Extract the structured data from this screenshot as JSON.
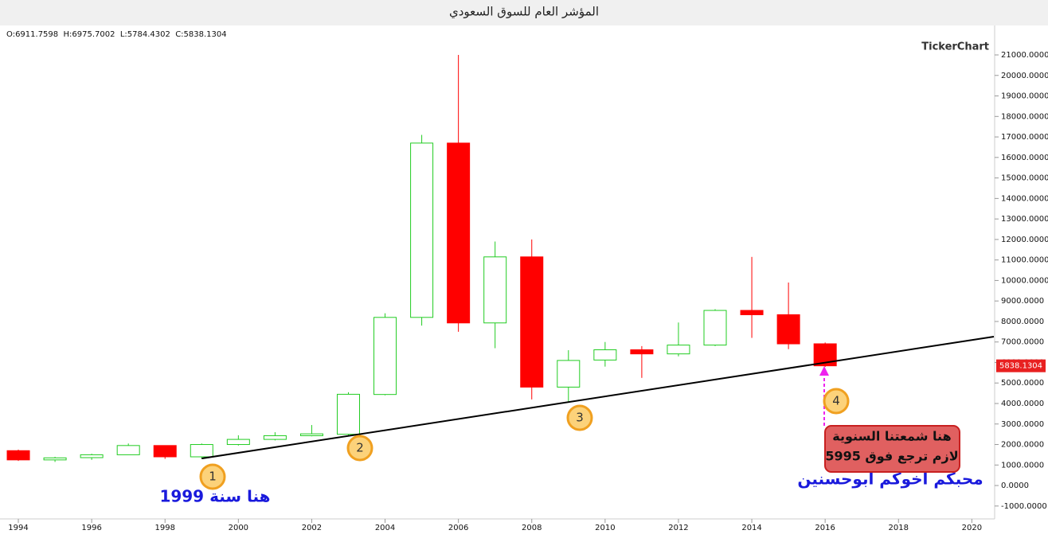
{
  "chart_data": {
    "type": "candlestick",
    "title": "المؤشر العام للسوق السعودي",
    "ohlc_label": "O:6911.7598  H:6975.7002  L:5784.4302  C:5838.1304",
    "watermark": "TickerChart",
    "x": [
      1994,
      1995,
      1996,
      1997,
      1998,
      1999,
      2000,
      2001,
      2002,
      2003,
      2004,
      2005,
      2006,
      2007,
      2008,
      2009,
      2010,
      2011,
      2012,
      2013,
      2014,
      2015,
      2016
    ],
    "series": [
      {
        "open": [
          1700,
          1250,
          1360,
          1500,
          1950,
          1400,
          2000,
          2250,
          2430,
          2500,
          4440,
          8200,
          16700,
          7930,
          11150,
          4800,
          6120,
          6620,
          6420,
          6850,
          8540,
          8330,
          6911.7598
        ],
        "high": [
          1750,
          1400,
          1550,
          2050,
          1950,
          2050,
          2450,
          2600,
          2950,
          4550,
          8400,
          17100,
          21000,
          11900,
          12000,
          6600,
          7000,
          6800,
          7950,
          8600,
          11150,
          9900,
          6975.7002
        ],
        "low": [
          1200,
          1150,
          1250,
          1500,
          1300,
          1300,
          1950,
          2200,
          2400,
          2400,
          4400,
          7800,
          7500,
          6700,
          4200,
          4100,
          5800,
          5250,
          6300,
          6800,
          7200,
          6650,
          5784.4302
        ],
        "close": [
          1250,
          1350,
          1500,
          1950,
          1400,
          2000,
          2250,
          2430,
          2520,
          4450,
          8200,
          16700,
          7930,
          11150,
          4800,
          6100,
          6620,
          6420,
          6850,
          8540,
          8330,
          6910,
          5838.1304
        ]
      }
    ],
    "up_color": "#22cc22",
    "down_color": "#ff0000",
    "xlim": [
      1993.5,
      2020.6
    ],
    "xticks": [
      1994,
      1996,
      1998,
      2000,
      2002,
      2004,
      2006,
      2008,
      2010,
      2012,
      2014,
      2016,
      2018,
      2020
    ],
    "ylim": [
      -1550,
      22320
    ],
    "yticks": [
      {
        "value": -1000,
        "label": "-1000.0000"
      },
      {
        "value": 0,
        "label": "0.0000"
      },
      {
        "value": 1000,
        "label": "1000.0000"
      },
      {
        "value": 2000,
        "label": "2000.0000"
      },
      {
        "value": 3000,
        "label": "3000.0000"
      },
      {
        "value": 4000,
        "label": "4000.0000"
      },
      {
        "value": 5000,
        "label": "5000.0000"
      },
      {
        "value": 6000,
        "label": "6000.0000"
      },
      {
        "value": 7000,
        "label": "7000.0000"
      },
      {
        "value": 8000,
        "label": "8000.0000"
      },
      {
        "value": 9000,
        "label": "9000.0000"
      },
      {
        "value": 10000,
        "label": "10000.0000"
      },
      {
        "value": 11000,
        "label": "11000.0000"
      },
      {
        "value": 12000,
        "label": "12000.0000"
      },
      {
        "value": 13000,
        "label": "13000.0000"
      },
      {
        "value": 14000,
        "label": "14000.0000"
      },
      {
        "value": 15000,
        "label": "15000.0000"
      },
      {
        "value": 16000,
        "label": "16000.0000"
      },
      {
        "value": 17000,
        "label": "17000.0000"
      },
      {
        "value": 18000,
        "label": "18000.0000"
      },
      {
        "value": 19000,
        "label": "19000.0000"
      },
      {
        "value": 20000,
        "label": "20000.0000"
      },
      {
        "value": 21000,
        "label": "21000.0000"
      }
    ],
    "trendline": {
      "x": [
        1999,
        2020.6
      ],
      "y": [
        1320,
        7260
      ]
    },
    "markers": [
      "1",
      "2",
      "3",
      "4"
    ],
    "annotations": [
      "هنا سنة 1999",
      "محبكم أخوكم أبوحسنين"
    ],
    "note_box": [
      "هنا شمعتنا السنوية",
      "لازم ترجع فوق 5995"
    ]
  }
}
